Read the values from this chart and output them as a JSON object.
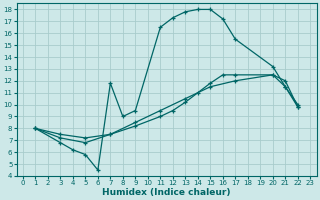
{
  "xlabel": "Humidex (Indice chaleur)",
  "bg_color": "#cde8e8",
  "grid_color": "#a8cccc",
  "line_color": "#006666",
  "xlim": [
    -0.5,
    23.5
  ],
  "ylim": [
    4,
    18.5
  ],
  "xticks": [
    0,
    1,
    2,
    3,
    4,
    5,
    6,
    7,
    8,
    9,
    10,
    11,
    12,
    13,
    14,
    15,
    16,
    17,
    18,
    19,
    20,
    21,
    22,
    23
  ],
  "yticks": [
    4,
    5,
    6,
    7,
    8,
    9,
    10,
    11,
    12,
    13,
    14,
    15,
    16,
    17,
    18
  ],
  "line1_x": [
    1,
    3,
    5,
    7,
    9,
    11,
    12,
    13,
    14,
    15,
    16,
    17,
    20,
    21,
    22
  ],
  "line1_y": [
    8,
    7.5,
    7.2,
    7.5,
    8.2,
    9.0,
    9.5,
    10.2,
    11.0,
    11.8,
    12.5,
    12.5,
    12.5,
    11.5,
    9.8
  ],
  "line2_x": [
    1,
    3,
    5,
    7,
    9,
    11,
    13,
    15,
    17,
    20,
    21,
    22
  ],
  "line2_y": [
    8,
    7.2,
    6.8,
    7.5,
    8.5,
    9.5,
    10.5,
    11.5,
    12.0,
    12.5,
    12.0,
    9.8
  ],
  "line3_x": [
    1,
    3,
    4,
    5,
    6,
    7,
    8,
    9,
    11,
    12,
    13,
    14,
    15,
    16,
    17,
    20,
    21,
    22
  ],
  "line3_y": [
    8.0,
    6.8,
    6.2,
    5.8,
    4.5,
    11.8,
    9.0,
    9.5,
    16.5,
    17.3,
    17.8,
    18.0,
    18.0,
    17.2,
    15.5,
    13.2,
    11.5,
    10.0
  ]
}
